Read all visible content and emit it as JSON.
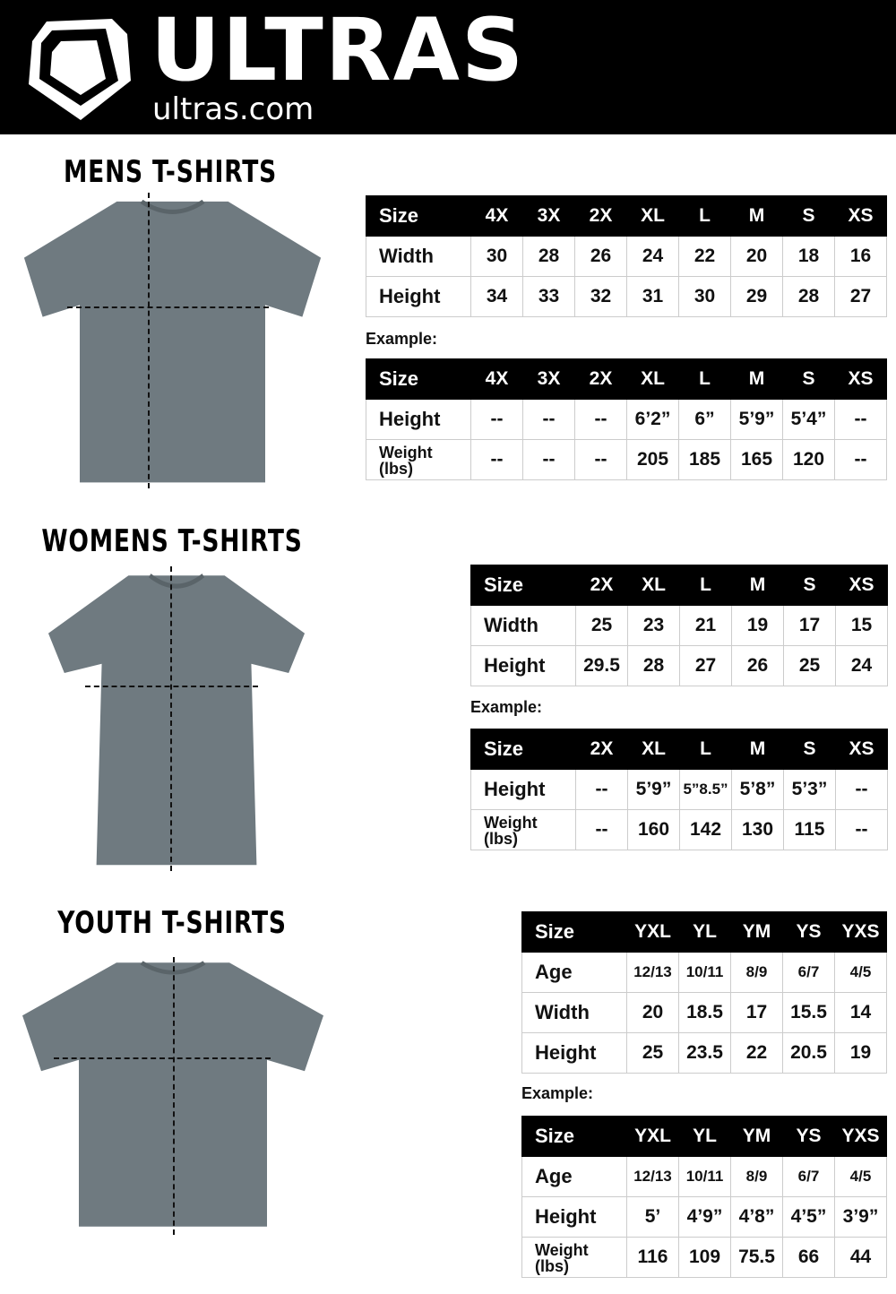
{
  "header": {
    "brand": "ULTRAS",
    "site": "ultras.com"
  },
  "sections": [
    {
      "title": "MENS T-SHIRTS",
      "example_label": "Example:",
      "sizes": {
        "headers": [
          "Size",
          "4X",
          "3X",
          "2X",
          "XL",
          "L",
          "M",
          "S",
          "XS"
        ],
        "rows": [
          [
            "Width",
            "30",
            "28",
            "26",
            "24",
            "22",
            "20",
            "18",
            "16"
          ],
          [
            "Height",
            "34",
            "33",
            "32",
            "31",
            "30",
            "29",
            "28",
            "27"
          ]
        ]
      },
      "example": {
        "headers": [
          "Size",
          "4X",
          "3X",
          "2X",
          "XL",
          "L",
          "M",
          "S",
          "XS"
        ],
        "rows": [
          [
            "Height",
            "--",
            "--",
            "--",
            "6’2”",
            "6”",
            "5’9”",
            "5’4”",
            "--"
          ],
          [
            "Weight (lbs)",
            "--",
            "--",
            "--",
            "205",
            "185",
            "165",
            "120",
            "--"
          ]
        ]
      }
    },
    {
      "title": "WOMENS T-SHIRTS",
      "example_label": "Example:",
      "sizes": {
        "headers": [
          "Size",
          "2X",
          "XL",
          "L",
          "M",
          "S",
          "XS"
        ],
        "rows": [
          [
            "Width",
            "25",
            "23",
            "21",
            "19",
            "17",
            "15"
          ],
          [
            "Height",
            "29.5",
            "28",
            "27",
            "26",
            "25",
            "24"
          ]
        ]
      },
      "example": {
        "headers": [
          "Size",
          "2X",
          "XL",
          "L",
          "M",
          "S",
          "XS"
        ],
        "rows": [
          [
            "Height",
            "--",
            "5’9”",
            "5”8.5”",
            "5’8”",
            "5’3”",
            "--"
          ],
          [
            "Weight (lbs)",
            "--",
            "160",
            "142",
            "130",
            "115",
            "--"
          ]
        ]
      }
    },
    {
      "title": "YOUTH T-SHIRTS",
      "example_label": "Example:",
      "sizes": {
        "headers": [
          "Size",
          "YXL",
          "YL",
          "YM",
          "YS",
          "YXS"
        ],
        "rows": [
          [
            "Age",
            "12/13",
            "10/11",
            "8/9",
            "6/7",
            "4/5"
          ],
          [
            "Width",
            "20",
            "18.5",
            "17",
            "15.5",
            "14"
          ],
          [
            "Height",
            "25",
            "23.5",
            "22",
            "20.5",
            "19"
          ]
        ]
      },
      "example": {
        "headers": [
          "Size",
          "YXL",
          "YL",
          "YM",
          "YS",
          "YXS"
        ],
        "rows": [
          [
            "Age",
            "12/13",
            "10/11",
            "8/9",
            "6/7",
            "4/5"
          ],
          [
            "Height",
            "5’",
            "4’9”",
            "4’8”",
            "4’5”",
            "3’9”"
          ],
          [
            "Weight (lbs)",
            "116",
            "109",
            "75.5",
            "66",
            "44"
          ]
        ]
      }
    }
  ]
}
